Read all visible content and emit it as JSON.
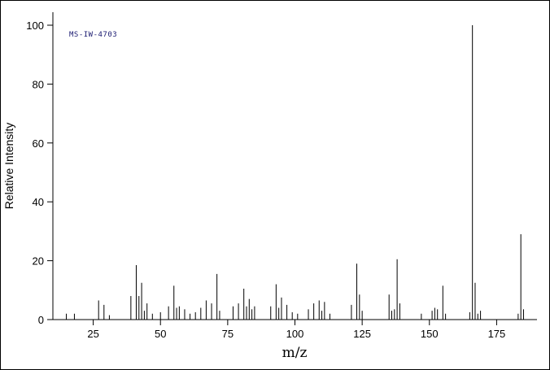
{
  "chart_data": {
    "type": "bar",
    "subtype": "mass-spectrum",
    "annotation": "MS-IW-4703",
    "xlabel": "m/z",
    "ylabel": "Relative Intensity",
    "xlim": [
      10,
      190
    ],
    "ylim": [
      0,
      100
    ],
    "x_ticks": [
      25,
      50,
      75,
      100,
      125,
      150,
      175
    ],
    "y_ticks": [
      0,
      20,
      40,
      60,
      80,
      100
    ],
    "grid": false,
    "legend": false,
    "base_peak_mz": 166,
    "molecular_ion_mz": 184,
    "colors": {
      "line": "#000000",
      "annotation": "#191970",
      "background": "#ffffff"
    },
    "peaks": [
      [
        15,
        2
      ],
      [
        18,
        2
      ],
      [
        27,
        6.5
      ],
      [
        29,
        5
      ],
      [
        31,
        1.5
      ],
      [
        39,
        8
      ],
      [
        41,
        18.5
      ],
      [
        42,
        8
      ],
      [
        43,
        12.5
      ],
      [
        44,
        3
      ],
      [
        45,
        5.5
      ],
      [
        47,
        2
      ],
      [
        50,
        2.5
      ],
      [
        53,
        4.5
      ],
      [
        55,
        11.5
      ],
      [
        56,
        4
      ],
      [
        57,
        4.5
      ],
      [
        59,
        3.5
      ],
      [
        61,
        2
      ],
      [
        63,
        2.5
      ],
      [
        65,
        4
      ],
      [
        67,
        6.5
      ],
      [
        69,
        5.5
      ],
      [
        71,
        15.5
      ],
      [
        72,
        3
      ],
      [
        77,
        4.5
      ],
      [
        79,
        5.5
      ],
      [
        81,
        10.5
      ],
      [
        82,
        4.5
      ],
      [
        83,
        7
      ],
      [
        84,
        3.5
      ],
      [
        85,
        4.5
      ],
      [
        91,
        4.5
      ],
      [
        93,
        12
      ],
      [
        94,
        4
      ],
      [
        95,
        7.5
      ],
      [
        97,
        5
      ],
      [
        99,
        2.5
      ],
      [
        101,
        2
      ],
      [
        105,
        3.5
      ],
      [
        107,
        5.5
      ],
      [
        109,
        6.5
      ],
      [
        110,
        3
      ],
      [
        111,
        6
      ],
      [
        113,
        2
      ],
      [
        121,
        5
      ],
      [
        123,
        19
      ],
      [
        124,
        8.5
      ],
      [
        125,
        3
      ],
      [
        135,
        8.5
      ],
      [
        136,
        3
      ],
      [
        137,
        3.5
      ],
      [
        138,
        20.5
      ],
      [
        139,
        5.5
      ],
      [
        147,
        2
      ],
      [
        151,
        3
      ],
      [
        152,
        4
      ],
      [
        153,
        3.5
      ],
      [
        155,
        11.5
      ],
      [
        156,
        2
      ],
      [
        165,
        2.5
      ],
      [
        166,
        100
      ],
      [
        167,
        12.5
      ],
      [
        168,
        2
      ],
      [
        169,
        3
      ],
      [
        183,
        2
      ],
      [
        184,
        29
      ],
      [
        185,
        3.5
      ]
    ]
  }
}
